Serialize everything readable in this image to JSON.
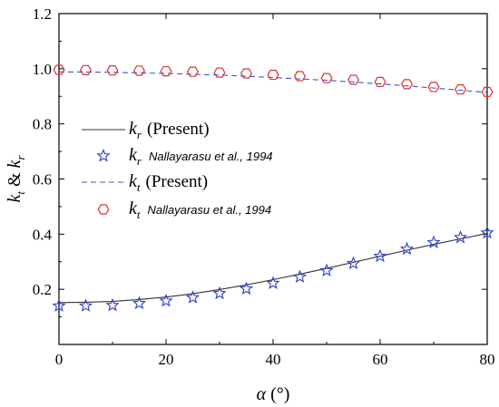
{
  "chart_data": {
    "type": "line",
    "xlabel_symbol": "α",
    "xlabel_unit": "(°)",
    "ylabel_parts": [
      "k",
      "t",
      " & ",
      "k",
      "r"
    ],
    "xlim": [
      0,
      80
    ],
    "ylim": [
      0,
      1.2
    ],
    "xticks": [
      0,
      20,
      40,
      60,
      80
    ],
    "xtick_labels": [
      "0",
      "20",
      "40",
      "60",
      "80"
    ],
    "yticks": [
      0.2,
      0.4,
      0.6,
      0.8,
      1.0,
      1.2
    ],
    "ytick_labels": [
      "0.2",
      "0.4",
      "0.6",
      "0.8",
      "1.0",
      "1.2"
    ],
    "grid": false,
    "legend_placement": "center-left",
    "series": [
      {
        "name_symbol": "k",
        "name_sub": "r",
        "name_text": "(Present)",
        "style": "solid",
        "color": "#333333",
        "x": [
          0,
          5,
          10,
          15,
          20,
          25,
          30,
          35,
          40,
          45,
          50,
          55,
          60,
          65,
          70,
          75,
          80
        ],
        "y": [
          0.152,
          0.153,
          0.156,
          0.163,
          0.172,
          0.184,
          0.199,
          0.216,
          0.235,
          0.255,
          0.276,
          0.298,
          0.32,
          0.342,
          0.363,
          0.383,
          0.403
        ]
      },
      {
        "name_symbol": "k",
        "name_sub": "r",
        "name_text": "Nallayarasu et al., 1994",
        "style": "marker-star",
        "color": "#2b3fc9",
        "x": [
          0,
          5,
          10,
          15,
          20,
          25,
          30,
          35,
          40,
          45,
          50,
          55,
          60,
          65,
          70,
          75,
          80
        ],
        "y": [
          0.14,
          0.14,
          0.142,
          0.149,
          0.158,
          0.17,
          0.185,
          0.202,
          0.222,
          0.245,
          0.268,
          0.294,
          0.32,
          0.346,
          0.37,
          0.388,
          0.405
        ]
      },
      {
        "name_symbol": "k",
        "name_sub": "t",
        "name_text": "(Present)",
        "style": "dashed",
        "color": "#3a55d6",
        "x": [
          0,
          5,
          10,
          15,
          20,
          25,
          30,
          35,
          40,
          45,
          50,
          55,
          60,
          65,
          70,
          75,
          80
        ],
        "y": [
          0.988,
          0.988,
          0.987,
          0.985,
          0.983,
          0.98,
          0.977,
          0.973,
          0.968,
          0.963,
          0.958,
          0.952,
          0.945,
          0.938,
          0.93,
          0.922,
          0.914
        ]
      },
      {
        "name_symbol": "k",
        "name_sub": "t",
        "name_text": "Nallayarasu et al., 1994",
        "style": "marker-hexagon",
        "color": "#e03030",
        "x": [
          0,
          5,
          10,
          15,
          20,
          25,
          30,
          35,
          40,
          45,
          50,
          55,
          60,
          65,
          70,
          75,
          80
        ],
        "y": [
          0.996,
          0.995,
          0.994,
          0.993,
          0.991,
          0.989,
          0.986,
          0.983,
          0.978,
          0.973,
          0.966,
          0.96,
          0.952,
          0.944,
          0.934,
          0.925,
          0.916
        ]
      }
    ]
  }
}
